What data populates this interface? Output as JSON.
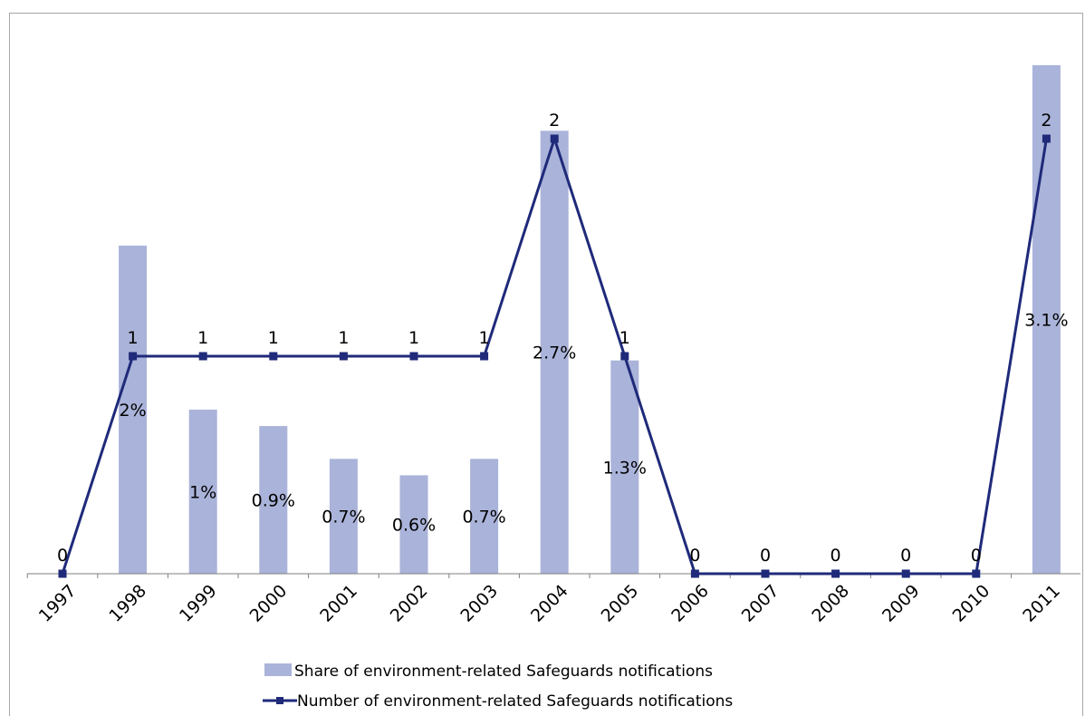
{
  "chart_data": {
    "type": "bar",
    "categories": [
      "1997",
      "1998",
      "1999",
      "2000",
      "2001",
      "2002",
      "2003",
      "2004",
      "2005",
      "2006",
      "2007",
      "2008",
      "2009",
      "2010",
      "2011"
    ],
    "series": [
      {
        "name": "Share of environment-related Safeguards notifications",
        "type": "bar",
        "color": "#aab3d9",
        "values": [
          0,
          2,
          1,
          0.9,
          0.7,
          0.6,
          0.7,
          2.7,
          1.3,
          0,
          0,
          0,
          0,
          0,
          3.1
        ],
        "labels": [
          "",
          "2%",
          "1%",
          "0.9%",
          "0.7%",
          "0.6%",
          "0.7%",
          "2.7%",
          "1.3%",
          "",
          "",
          "",
          "",
          "",
          "3.1%"
        ]
      },
      {
        "name": "Number of environment-related Safeguards notifications",
        "type": "line",
        "color": "#1f2a7a",
        "values": [
          0,
          1,
          1,
          1,
          1,
          1,
          1,
          2,
          1,
          0,
          0,
          0,
          0,
          0,
          2
        ],
        "labels": [
          "0",
          "1",
          "1",
          "1",
          "1",
          "1",
          "1",
          "2",
          "1",
          "0",
          "0",
          "0",
          "0",
          "0",
          "2"
        ]
      }
    ],
    "legend_position": "bottom",
    "grid": false
  }
}
